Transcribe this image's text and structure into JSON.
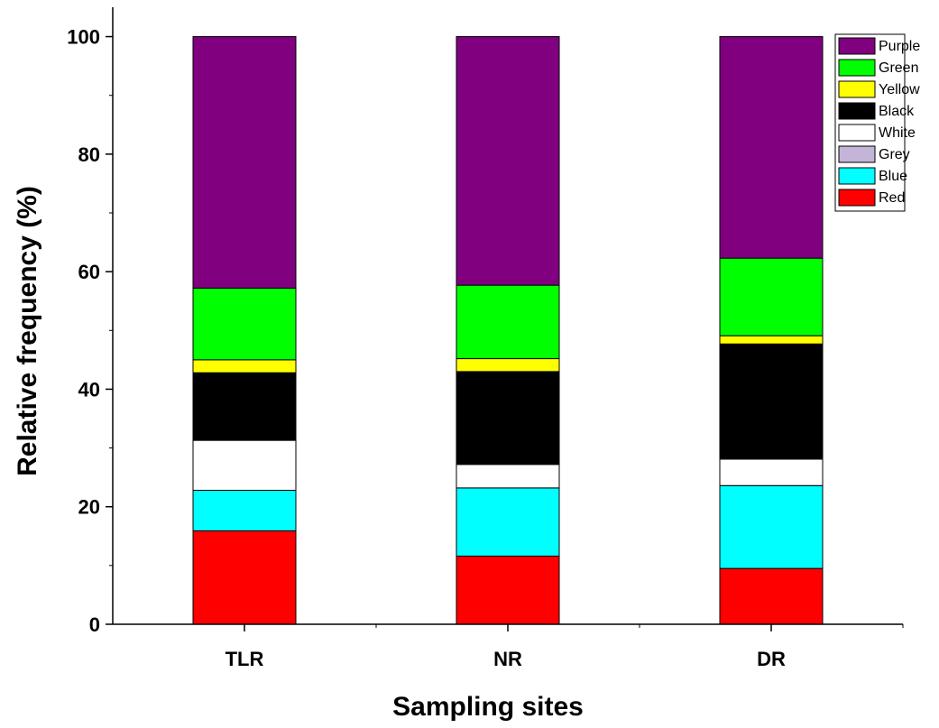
{
  "chart_data": {
    "type": "bar",
    "stacked": true,
    "xlabel": "Sampling sites",
    "ylabel": "Relative frequency (%)",
    "ylim": [
      0,
      105
    ],
    "yticks": [
      0,
      20,
      40,
      60,
      80,
      100
    ],
    "categories": [
      "TLR",
      "NR",
      "DR"
    ],
    "legend_position": "top-right",
    "grid": false,
    "series": [
      {
        "name": "Red",
        "color": "#ff0000",
        "values": [
          15.9,
          11.6,
          9.5
        ]
      },
      {
        "name": "Blue",
        "color": "#00ffff",
        "values": [
          6.9,
          11.6,
          14.1
        ]
      },
      {
        "name": "Grey",
        "color": "#c3b4d8",
        "values": [
          0,
          0,
          0
        ]
      },
      {
        "name": "White",
        "color": "#ffffff",
        "values": [
          8.5,
          4.0,
          4.5
        ]
      },
      {
        "name": "Black",
        "color": "#000000",
        "values": [
          11.5,
          15.8,
          19.6
        ]
      },
      {
        "name": "Yellow",
        "color": "#ffff00",
        "values": [
          2.2,
          2.2,
          1.4
        ]
      },
      {
        "name": "Green",
        "color": "#00ff00",
        "values": [
          12.2,
          12.5,
          13.2
        ]
      },
      {
        "name": "Purple",
        "color": "#800080",
        "values": [
          42.8,
          42.3,
          37.7
        ]
      }
    ]
  }
}
